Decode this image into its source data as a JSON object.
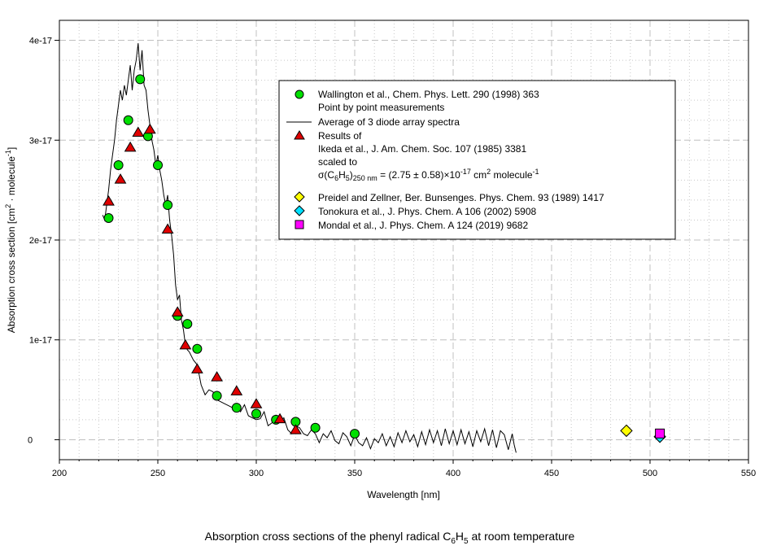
{
  "chart_data": {
    "type": "scatter",
    "caption": "Absorption cross sections of the phenyl radical C6H5 at room temperature",
    "caption_parts": {
      "pre": "Absorption cross sections of the phenyl radical C",
      "sub1": "6",
      "mid": "H",
      "sub2": "5",
      "post": " at room temperature"
    },
    "xlabel": "Wavelength [nm]",
    "ylabel": "Absorption cross section [cm2 · molecule-1]",
    "ylabel_parts": {
      "pre": "Absorption cross section [cm",
      "sup1": "2",
      "mid": " · molecule",
      "sup2": "-1",
      "post": "]"
    },
    "xlim": [
      200,
      550
    ],
    "ylim": [
      -2e-18,
      4.2e-17
    ],
    "xticks": [
      200,
      250,
      300,
      350,
      400,
      450,
      500,
      550
    ],
    "xtick_labels": [
      "200",
      "250",
      "300",
      "350",
      "400",
      "450",
      "500",
      "550"
    ],
    "yticks": [
      0,
      1e-17,
      2e-17,
      3e-17,
      4e-17
    ],
    "ytick_labels": [
      "0",
      "1e-17",
      "2e-17",
      "3e-17",
      "4e-17"
    ],
    "grid": true,
    "legend_position": "upper-right",
    "series": [
      {
        "name": "Wallington et al., Chem. Phys. Lett. 290 (1998) 363",
        "legend_lines": [
          "Wallington et al., Chem. Phys. Lett. 290 (1998) 363",
          "Point by point measurements"
        ],
        "marker": "circle",
        "color": "#00e000",
        "x": [
          225,
          230,
          235,
          241,
          245,
          250,
          255,
          260,
          265,
          270,
          280,
          290,
          300,
          310,
          320,
          330,
          350
        ],
        "y": [
          2.22e-17,
          2.75e-17,
          3.2e-17,
          3.61e-17,
          3.04e-17,
          2.75e-17,
          2.35e-17,
          1.24e-17,
          1.16e-17,
          9.1e-18,
          4.4e-18,
          3.2e-18,
          2.6e-18,
          2e-18,
          1.8e-18,
          1.2e-18,
          6e-19
        ]
      },
      {
        "name": "Average of 3 diode array spectra",
        "legend_lines": [
          "Average of 3 diode array spectra"
        ],
        "marker": "line",
        "color": "#000000",
        "x": [
          222,
          223,
          224,
          225,
          226,
          227,
          228,
          229,
          230,
          231,
          232,
          233,
          234,
          235,
          236,
          237,
          238,
          239,
          240,
          241,
          242,
          243,
          244,
          245,
          246,
          247,
          248,
          249,
          250,
          251,
          252,
          253,
          254,
          255,
          256,
          257,
          258,
          259,
          260,
          261,
          262,
          263,
          264,
          265,
          266,
          268,
          270,
          272,
          274,
          276,
          278,
          280,
          282,
          284,
          286,
          288,
          290,
          292,
          294,
          296,
          298,
          300,
          302,
          304,
          306,
          308,
          310,
          312,
          314,
          316,
          318,
          320,
          322,
          324,
          326,
          328,
          330,
          332,
          334,
          336,
          338,
          340,
          342,
          344,
          346,
          348,
          350,
          352,
          354,
          356,
          358,
          360,
          362,
          364,
          366,
          368,
          370,
          372,
          374,
          376,
          378,
          380,
          382,
          384,
          386,
          388,
          390,
          392,
          394,
          396,
          398,
          400,
          402,
          404,
          406,
          408,
          410,
          412,
          414,
          416,
          418,
          420,
          422,
          424,
          426,
          428,
          430,
          431,
          432
        ],
        "y": [
          2.25e-17,
          2.2e-17,
          2.35e-17,
          2.5e-17,
          2.7e-17,
          2.85e-17,
          3e-17,
          3.2e-17,
          3.35e-17,
          3.5e-17,
          3.4e-17,
          3.55e-17,
          3.45e-17,
          3.6e-17,
          3.75e-17,
          3.5e-17,
          3.7e-17,
          3.8e-17,
          3.97e-17,
          3.7e-17,
          3.9e-17,
          3.55e-17,
          3.5e-17,
          3.3e-17,
          3.15e-17,
          3e-17,
          2.9e-17,
          2.75e-17,
          2.85e-17,
          2.7e-17,
          2.6e-17,
          2.45e-17,
          2.35e-17,
          2.45e-17,
          2.2e-17,
          2.05e-17,
          1.85e-17,
          1.55e-17,
          1.4e-17,
          1.45e-17,
          1.2e-17,
          1.1e-17,
          9.5e-18,
          9e-18,
          8.8e-18,
          8e-18,
          7.5e-18,
          5.5e-18,
          4.5e-18,
          5e-18,
          4.8e-18,
          4e-18,
          3.8e-18,
          3.6e-18,
          3.4e-18,
          3.2e-18,
          3.3e-18,
          2.8e-18,
          3.5e-18,
          2.4e-18,
          2.2e-18,
          2e-18,
          2.1e-18,
          2.8e-18,
          1.4e-18,
          1.7e-18,
          2e-18,
          1.8e-18,
          2.2e-18,
          1e-18,
          6e-19,
          1.4e-18,
          1.2e-18,
          6e-19,
          4e-19,
          1e-18,
          6e-19,
          -3e-19,
          6e-19,
          2e-19,
          9e-19,
          -1e-19,
          -4e-19,
          7e-19,
          3e-19,
          -6e-19,
          5e-19,
          -3e-19,
          -6e-19,
          2e-19,
          -9e-19,
          1e-19,
          -3e-19,
          6e-19,
          -6e-19,
          3e-19,
          -7e-19,
          7e-19,
          -3e-19,
          9e-19,
          -2e-19,
          5e-19,
          -7e-19,
          8e-19,
          -5e-19,
          1e-18,
          -3e-19,
          9e-19,
          -6e-19,
          1.1e-18,
          -4e-19,
          9e-19,
          -5e-19,
          1e-18,
          -4e-19,
          8e-19,
          -7e-19,
          9e-19,
          -2e-19,
          1.1e-18,
          -6e-19,
          1e-18,
          -8e-19,
          9e-19,
          5e-19,
          -1e-18,
          6e-19,
          -5e-19,
          -1.3e-18
        ]
      },
      {
        "name": "Results of Ikeda et al., J. Am. Chem. Soc. 107 (1985) 3381 scaled to",
        "legend_lines": [
          "Results of",
          "Ikeda et al., J. Am. Chem. Soc. 107 (1985) 3381",
          "scaled to"
        ],
        "legend_formula": {
          "a": "σ(C",
          "s1": "6",
          "b": "H",
          "s2": "5",
          "c": ")",
          "s3": "250 nm",
          "d": " = (2.75 ± 0.58)×10",
          "e1": "-17",
          "f": " cm",
          "e2": "2",
          "g": " molecule",
          "e3": "-1"
        },
        "marker": "triangle",
        "color": "#e00000",
        "x": [
          225,
          231,
          236,
          240,
          246,
          255,
          260,
          264,
          270,
          280,
          290,
          300,
          312,
          320
        ],
        "y": [
          2.39e-17,
          2.61e-17,
          2.93e-17,
          3.08e-17,
          3.11e-17,
          2.11e-17,
          1.28e-17,
          9.5e-18,
          7.1e-18,
          6.3e-18,
          4.9e-18,
          3.6e-18,
          2.1e-18,
          1e-18
        ]
      },
      {
        "name": "Preidel and Zellner,  Ber. Bunsenges. Phys. Chem. 93 (1989) 1417",
        "legend_lines": [
          "Preidel and Zellner,  Ber. Bunsenges. Phys. Chem. 93 (1989) 1417"
        ],
        "marker": "diamond",
        "color": "#ffff00",
        "x": [
          488
        ],
        "y": [
          9e-19
        ]
      },
      {
        "name": "Tonokura et al.,  J. Phys. Chem. A 106 (2002) 5908",
        "legend_lines": [
          "Tonokura et al.,  J. Phys. Chem. A 106 (2002) 5908"
        ],
        "marker": "diamond",
        "color": "#00e0ff",
        "x": [
          505
        ],
        "y": [
          3e-19
        ]
      },
      {
        "name": "Mondal et al., J. Phys. Chem. A 124 (2019) 9682",
        "legend_lines": [
          "Mondal et al., J. Phys. Chem. A 124 (2019) 9682"
        ],
        "marker": "square",
        "color": "#ff00ff",
        "x": [
          505
        ],
        "y": [
          5e-19
        ]
      }
    ]
  }
}
